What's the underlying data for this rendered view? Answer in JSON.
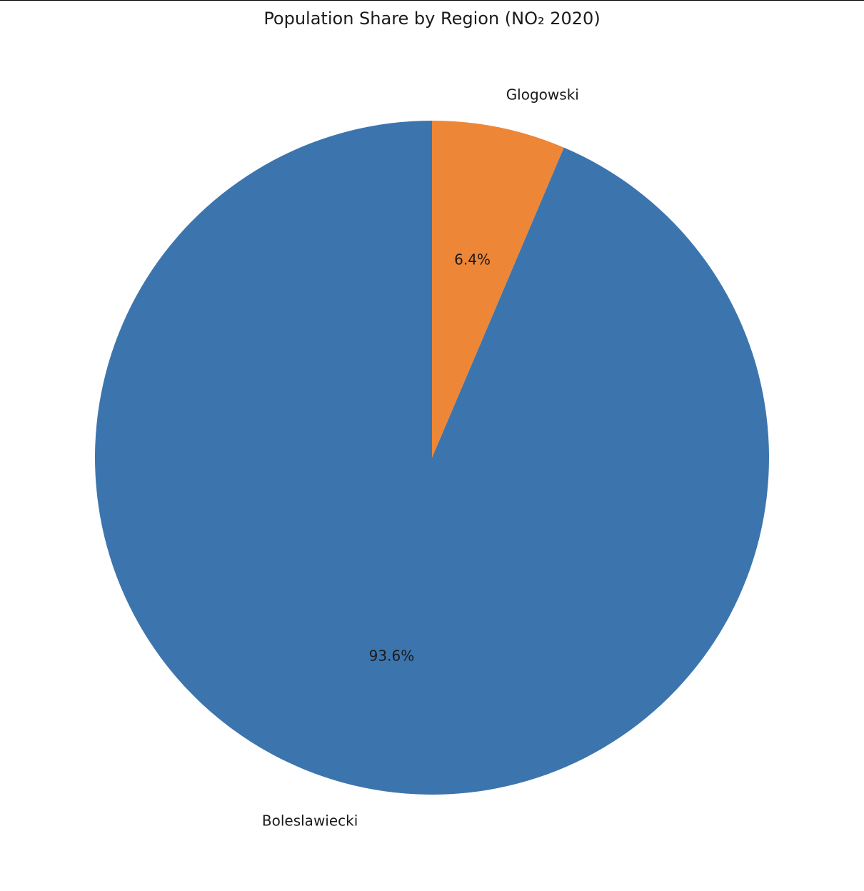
{
  "chart_data": {
    "type": "pie",
    "title": "Population Share by Region (NO₂ 2020)",
    "categories": [
      "Boleslawiecki",
      "Glogowski"
    ],
    "values": [
      93.6,
      6.4
    ],
    "value_labels": [
      "93.6%",
      "6.4%"
    ],
    "colors": [
      "#3c75ae",
      "#ee8637"
    ],
    "start_angle_deg": 90,
    "direction": "counterclockwise"
  }
}
